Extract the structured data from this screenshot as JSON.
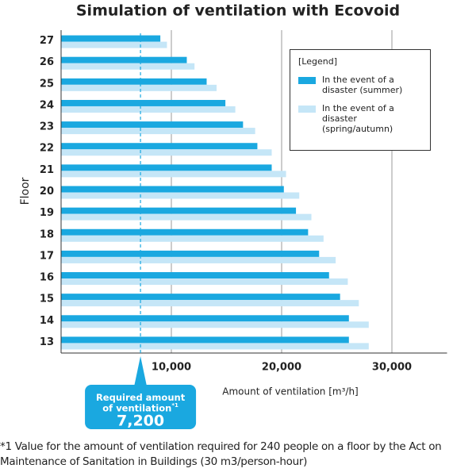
{
  "chart_data": {
    "type": "barh",
    "title": "Simulation of ventilation with Ecovoid",
    "y_label": "Floor",
    "x_label": "Amount of ventilation [m³/h]",
    "legend_title": "[Legend]",
    "legend_position": "upper right",
    "categories": [
      "27",
      "26",
      "25",
      "24",
      "23",
      "22",
      "21",
      "20",
      "19",
      "18",
      "17",
      "16",
      "15",
      "14",
      "13"
    ],
    "series": [
      {
        "name": "In the event of a disaster (summer)",
        "color": "#1aa8e0",
        "values": [
          9000,
          11400,
          13200,
          14900,
          16500,
          17800,
          19100,
          20200,
          21300,
          22400,
          23400,
          24300,
          25300,
          26100,
          26100
        ]
      },
      {
        "name": "In the event of a disaster (spring/autumn)",
        "color": "#c5e6f7",
        "values": [
          9600,
          12100,
          14100,
          15800,
          17600,
          19100,
          20400,
          21600,
          22700,
          23800,
          24900,
          26000,
          27000,
          27900,
          27900
        ]
      }
    ],
    "xlim": [
      0,
      35000
    ],
    "xticks": [
      {
        "value": 10000,
        "label": "10,000"
      },
      {
        "value": 20000,
        "label": "20,000"
      },
      {
        "value": 30000,
        "label": "30,000"
      }
    ],
    "grid": true,
    "reference": {
      "label": "Required amount of ventilation",
      "note_mark": "*1",
      "value": 7200,
      "value_label": "7,200",
      "color": "#1aa8e0"
    },
    "footnote": "*1 Value for the amount of ventilation required for 240 people on a floor by the Act on Maintenance of Sanitation in Buildings (30 m3/person-hour)"
  }
}
